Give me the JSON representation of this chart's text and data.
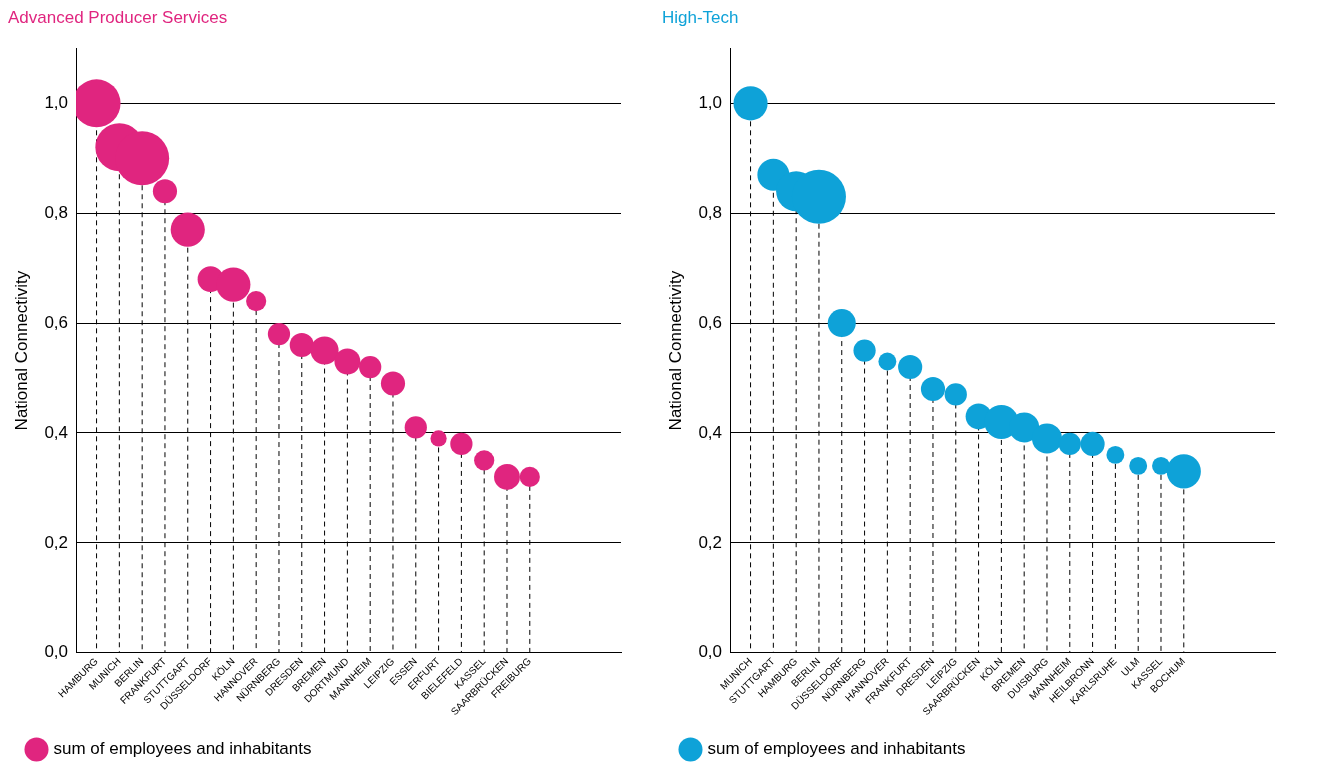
{
  "chart_data": [
    {
      "type": "bubble",
      "title": "Advanced Producer Services",
      "ylabel": "National Connectivity",
      "categories": [
        "HAMBURG",
        "MUNICH",
        "BERLIN",
        "FRANKFURT",
        "STUTTGART",
        "DÜSSELDORF",
        "KÖLN",
        "HANNOVER",
        "NÜRNBERG",
        "DRESDEN",
        "BREMEN",
        "DORTMUND",
        "MANNHEIM",
        "LEIPZIG",
        "ESSEN",
        "ERFURT",
        "BIELEFELD",
        "KASSEL",
        "SAARBRÜCKEN",
        "FREIBURG"
      ],
      "series": [
        {
          "name": "sum of employees and inhabitants",
          "color": "#e0257f",
          "values": [
            1.0,
            0.92,
            0.9,
            0.84,
            0.77,
            0.68,
            0.67,
            0.64,
            0.58,
            0.56,
            0.55,
            0.53,
            0.52,
            0.49,
            0.41,
            0.39,
            0.38,
            0.35,
            0.32,
            0.32
          ],
          "sizes": [
            0.79,
            0.79,
            1,
            0.2,
            0.4,
            0.23,
            0.4,
            0.14,
            0.17,
            0.2,
            0.27,
            0.23,
            0.17,
            0.2,
            0.17,
            0.09,
            0.17,
            0.14,
            0.23,
            0.14
          ]
        }
      ],
      "ylim": [
        0,
        1.1
      ],
      "yticks": [
        {
          "value": 0,
          "label": "0,0"
        },
        {
          "value": 0.2,
          "label": "0,2"
        },
        {
          "value": 0.4,
          "label": "0,4"
        },
        {
          "value": 0.6,
          "label": "0,6"
        },
        {
          "value": 0.8,
          "label": "0,8"
        },
        {
          "value": 1,
          "label": "1,0"
        }
      ],
      "grid": true,
      "legend": "bottom"
    },
    {
      "type": "bubble",
      "title": "High-Tech",
      "ylabel": "National Connectivity",
      "categories": [
        "MUNICH",
        "STUTTGART",
        "HAMBURG",
        "BERLIN",
        "DÜSSELDORF",
        "NÜRNBERG",
        "HANNOVER",
        "FRANKFURT",
        "DRESDEN",
        "LEIPZIG",
        "SAARBRÜCKEN",
        "KÖLN",
        "BREMEN",
        "DUISBURG",
        "MANNHEIM",
        "HEILBRONN",
        "KARLSRUHE",
        "ULM",
        "KASSEL",
        "BOCHUM"
      ],
      "series": [
        {
          "name": "sum of employees and inhabitants",
          "color": "#0ea2d8",
          "values": [
            1.0,
            0.87,
            0.84,
            0.83,
            0.6,
            0.55,
            0.53,
            0.52,
            0.48,
            0.47,
            0.43,
            0.42,
            0.41,
            0.39,
            0.38,
            0.38,
            0.36,
            0.34,
            0.34,
            0.33
          ],
          "sizes": [
            0.4,
            0.35,
            0.55,
            1,
            0.27,
            0.17,
            0.11,
            0.2,
            0.2,
            0.17,
            0.23,
            0.4,
            0.31,
            0.31,
            0.17,
            0.2,
            0.11,
            0.11,
            0.11,
            0.4
          ]
        }
      ],
      "ylim": [
        0,
        1.1
      ],
      "yticks": [
        {
          "value": 0,
          "label": "0,0"
        },
        {
          "value": 0.2,
          "label": "0,2"
        },
        {
          "value": 0.4,
          "label": "0,4"
        },
        {
          "value": 0.6,
          "label": "0,6"
        },
        {
          "value": 0.8,
          "label": "0,8"
        },
        {
          "value": 1,
          "label": "1,0"
        }
      ],
      "grid": true,
      "legend": "bottom"
    }
  ]
}
